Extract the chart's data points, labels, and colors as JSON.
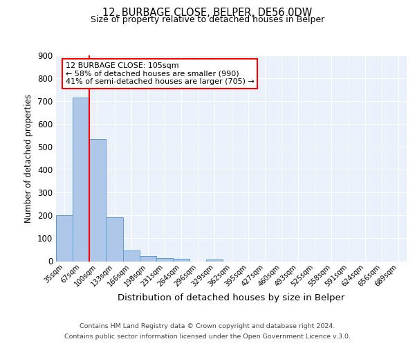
{
  "title": "12, BURBAGE CLOSE, BELPER, DE56 0DW",
  "subtitle": "Size of property relative to detached houses in Belper",
  "xlabel": "Distribution of detached houses by size in Belper",
  "ylabel": "Number of detached properties",
  "bar_labels": [
    "35sqm",
    "67sqm",
    "100sqm",
    "133sqm",
    "166sqm",
    "198sqm",
    "231sqm",
    "264sqm",
    "296sqm",
    "329sqm",
    "362sqm",
    "395sqm",
    "427sqm",
    "460sqm",
    "493sqm",
    "525sqm",
    "558sqm",
    "591sqm",
    "624sqm",
    "656sqm",
    "689sqm"
  ],
  "bar_values": [
    200,
    715,
    535,
    193,
    46,
    22,
    14,
    10,
    0,
    8,
    0,
    0,
    0,
    0,
    0,
    0,
    0,
    0,
    0,
    0,
    0
  ],
  "bar_color": "#aec6e8",
  "bar_edge_color": "#5b9bd5",
  "ylim": [
    0,
    900
  ],
  "yticks": [
    0,
    100,
    200,
    300,
    400,
    500,
    600,
    700,
    800,
    900
  ],
  "property_line_color": "red",
  "annotation_title": "12 BURBAGE CLOSE: 105sqm",
  "annotation_line1": "← 58% of detached houses are smaller (990)",
  "annotation_line2": "41% of semi-detached houses are larger (705) →",
  "annotation_box_color": "white",
  "annotation_box_edge_color": "red",
  "footer_line1": "Contains HM Land Registry data © Crown copyright and database right 2024.",
  "footer_line2": "Contains public sector information licensed under the Open Government Licence v.3.0.",
  "background_color": "#eaf1fb",
  "grid_color": "white",
  "fig_background": "white"
}
